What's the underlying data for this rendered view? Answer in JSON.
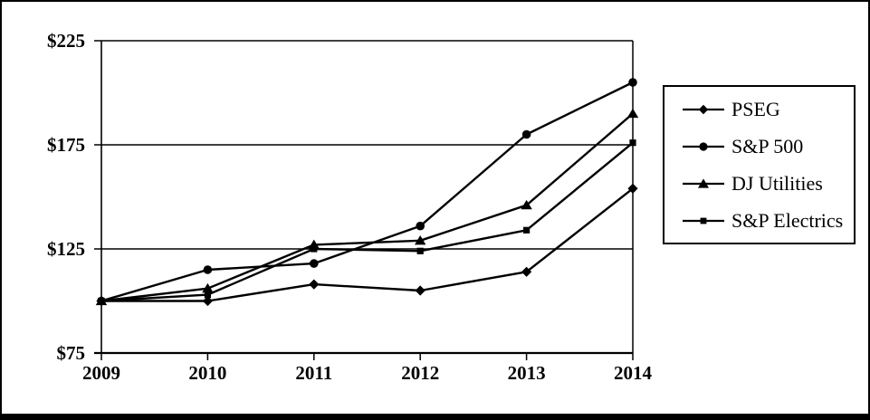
{
  "chart_data": {
    "type": "line",
    "title": "",
    "xlabel": "",
    "ylabel": "",
    "x_labels": [
      "2009",
      "2010",
      "2011",
      "2012",
      "2013",
      "2014"
    ],
    "y_ticks": [
      {
        "value": 225,
        "label": "$225"
      },
      {
        "value": 175,
        "label": "$175"
      },
      {
        "value": 125,
        "label": "$125"
      },
      {
        "value": 75,
        "label": "$75"
      }
    ],
    "ylim": [
      75,
      225
    ],
    "gridline_values": [
      125,
      175
    ],
    "grid": "horizontal",
    "legend_position": "right",
    "line_color": "#000000",
    "background_color": "#ffffff",
    "series": [
      {
        "name": "PSEG",
        "marker": "diamond",
        "values": [
          100,
          100,
          108,
          105,
          114,
          154
        ]
      },
      {
        "name": "S&P 500",
        "marker": "circle",
        "values": [
          100,
          115,
          118,
          136,
          180,
          205
        ]
      },
      {
        "name": "DJ Utilities",
        "marker": "triangle",
        "values": [
          100,
          106,
          127,
          129,
          146,
          190
        ]
      },
      {
        "name": "S&P Electrics",
        "marker": "square",
        "values": [
          100,
          103,
          125,
          124,
          134,
          176
        ]
      }
    ]
  }
}
